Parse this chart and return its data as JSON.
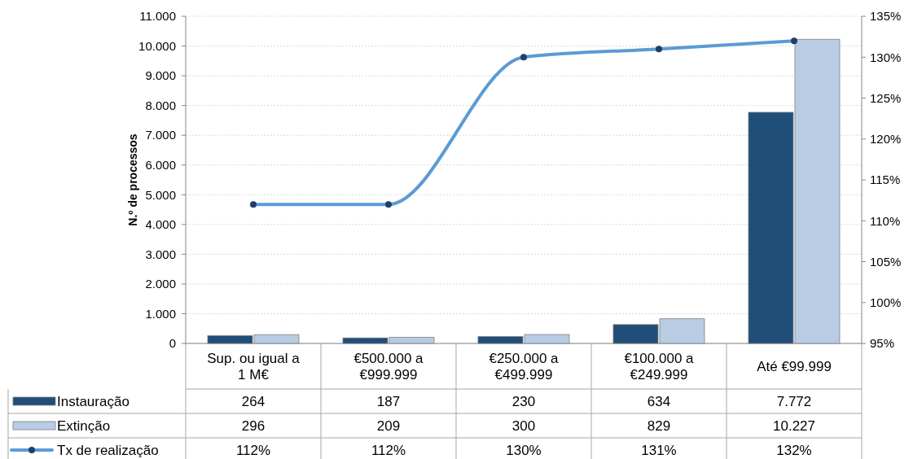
{
  "chart_data": {
    "type": "bar",
    "ylabel": "N.º de processos",
    "categories": [
      "Sup. ou igual a 1 M€",
      "€500.000 a €999.999",
      "€250.000 a €499.999",
      "€100.000 a €249.999",
      "Até €99.999"
    ],
    "series": [
      {
        "name": "Instauração",
        "color": "#1f4e79",
        "values": [
          264,
          187,
          230,
          634,
          7772
        ],
        "value_labels": [
          "264",
          "187",
          "230",
          "634",
          "7.772"
        ]
      },
      {
        "name": "Extinção",
        "color": "#b8cce4",
        "values": [
          296,
          209,
          300,
          829,
          10227
        ],
        "value_labels": [
          "296",
          "209",
          "300",
          "829",
          "10.227"
        ]
      },
      {
        "name": "Tx de realização",
        "type": "line",
        "axis": "y2",
        "color": "#5b9bd5",
        "values": [
          112,
          112,
          130,
          131,
          132
        ],
        "value_labels": [
          "112%",
          "112%",
          "130%",
          "131%",
          "132%"
        ]
      }
    ],
    "ylim": [
      0,
      11000
    ],
    "yticks": [
      0,
      {
        "value": 1000,
        "label": "1.000"
      },
      {
        "value": 2000,
        "label": "2.000"
      },
      {
        "value": 3000,
        "label": "3.000"
      },
      {
        "value": 4000,
        "label": "4.000"
      },
      {
        "value": 5000,
        "label": "5.000"
      },
      {
        "value": 6000,
        "label": "6.000"
      },
      {
        "value": 7000,
        "label": "7.000"
      },
      {
        "value": 8000,
        "label": "8.000"
      },
      {
        "value": 9000,
        "label": "9.000"
      },
      {
        "value": 10000,
        "label": "10.000"
      },
      {
        "value": 11000,
        "label": "11.000"
      }
    ],
    "y2lim": [
      95,
      135
    ],
    "y2ticks": [
      {
        "value": 95,
        "label": "95%"
      },
      {
        "value": 100,
        "label": "100%"
      },
      {
        "value": 105,
        "label": "105%"
      },
      {
        "value": 110,
        "label": "110%"
      },
      {
        "value": 115,
        "label": "115%"
      },
      {
        "value": 120,
        "label": "120%"
      },
      {
        "value": 125,
        "label": "125%"
      },
      {
        "value": 130,
        "label": "130%"
      },
      {
        "value": 135,
        "label": "135%"
      }
    ],
    "grid": "y",
    "legend": "bottom",
    "marker": "circle",
    "line_style": "solid"
  }
}
